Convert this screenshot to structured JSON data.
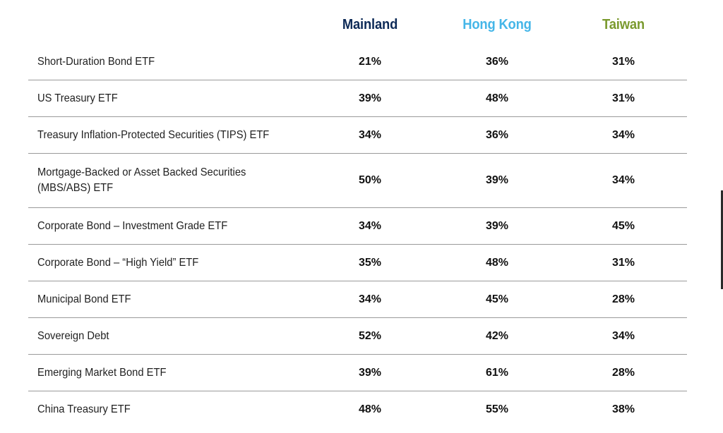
{
  "colors": {
    "mainland": "#0d2a57",
    "hong_kong": "#45b6e8",
    "taiwan": "#7a9a2e",
    "divider": "#9a9a9a"
  },
  "chart_data": {
    "type": "table",
    "columns": [
      "Mainland",
      "Hong Kong",
      "Taiwan"
    ],
    "rows": [
      {
        "label": "Short-Duration Bond ETF",
        "values": [
          "21%",
          "36%",
          "31%"
        ]
      },
      {
        "label": "US Treasury ETF",
        "values": [
          "39%",
          "48%",
          "31%"
        ]
      },
      {
        "label": "Treasury Inflation-Protected Securities (TIPS) ETF",
        "values": [
          "34%",
          "36%",
          "34%"
        ]
      },
      {
        "label": "Mortgage-Backed or Asset Backed Securities (MBS/ABS) ETF",
        "values": [
          "50%",
          "39%",
          "34%"
        ]
      },
      {
        "label": "Corporate Bond – Investment Grade ETF",
        "values": [
          "34%",
          "39%",
          "45%"
        ]
      },
      {
        "label": "Corporate Bond – “High Yield” ETF",
        "values": [
          "35%",
          "48%",
          "31%"
        ]
      },
      {
        "label": "Municipal Bond ETF",
        "values": [
          "34%",
          "45%",
          "28%"
        ]
      },
      {
        "label": "Sovereign Debt",
        "values": [
          "52%",
          "42%",
          "34%"
        ]
      },
      {
        "label": "Emerging Market Bond ETF",
        "values": [
          "39%",
          "61%",
          "28%"
        ]
      },
      {
        "label": "China Treasury ETF",
        "values": [
          "48%",
          "55%",
          "38%"
        ]
      }
    ]
  }
}
